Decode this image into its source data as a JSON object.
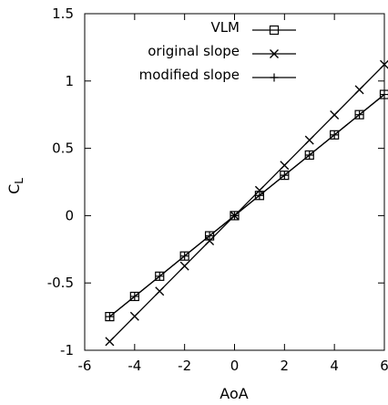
{
  "chart_data": {
    "type": "line",
    "xlabel": "AoA",
    "ylabel": "C",
    "ylabel_subscript": "L",
    "xlim": [
      -6,
      6
    ],
    "ylim": [
      -1,
      1.5
    ],
    "x_ticks": [
      -6,
      -4,
      -2,
      0,
      2,
      4,
      6
    ],
    "y_ticks": [
      -1,
      -0.5,
      0,
      0.5,
      1,
      1.5
    ],
    "x_tick_labels": [
      "-6",
      "-4",
      "-2",
      "0",
      "2",
      "4",
      "6"
    ],
    "y_tick_labels": [
      "-1",
      "-0.5",
      "0",
      "0.5",
      "1",
      "1.5"
    ],
    "grid": false,
    "legend_position": "top-right",
    "x": [
      -5,
      -4,
      -3,
      -2,
      -1,
      0,
      1,
      2,
      3,
      4,
      5,
      6
    ],
    "series": [
      {
        "name": "VLM",
        "marker": "square",
        "values": [
          -0.75,
          -0.6,
          -0.45,
          -0.3,
          -0.15,
          0,
          0.15,
          0.3,
          0.45,
          0.6,
          0.75,
          0.9
        ]
      },
      {
        "name": "original slope",
        "marker": "cross",
        "values": [
          -0.935,
          -0.748,
          -0.561,
          -0.374,
          -0.187,
          0,
          0.187,
          0.374,
          0.561,
          0.748,
          0.935,
          1.122
        ]
      },
      {
        "name": "modified slope",
        "marker": "plus",
        "values": [
          -0.75,
          -0.6,
          -0.45,
          -0.3,
          -0.15,
          0,
          0.15,
          0.3,
          0.45,
          0.6,
          0.75,
          0.9
        ]
      }
    ],
    "line_color": "#000000"
  }
}
